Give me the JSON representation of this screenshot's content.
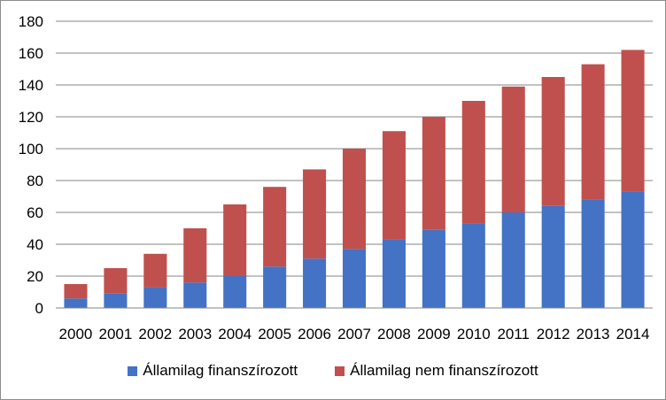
{
  "chart_data": {
    "type": "bar",
    "stacked": true,
    "categories": [
      "2000",
      "2001",
      "2002",
      "2003",
      "2004",
      "2005",
      "2006",
      "2007",
      "2008",
      "2009",
      "2010",
      "2011",
      "2012",
      "2013",
      "2014"
    ],
    "series": [
      {
        "name": "Államilag finanszírozott",
        "color": "#4472c4",
        "values": [
          6,
          9,
          13,
          16,
          20,
          26,
          31,
          37,
          43,
          49,
          53,
          60,
          64,
          68,
          73
        ]
      },
      {
        "name": "Államilag nem finanszírozott",
        "color": "#c0504d",
        "values": [
          9,
          16,
          21,
          34,
          45,
          50,
          56,
          63,
          68,
          71,
          77,
          79,
          81,
          85,
          89
        ]
      }
    ],
    "ylim": [
      0,
      180
    ],
    "yticks": [
      0,
      20,
      40,
      60,
      80,
      100,
      120,
      140,
      160,
      180
    ],
    "grid": true,
    "legend_position": "bottom"
  }
}
